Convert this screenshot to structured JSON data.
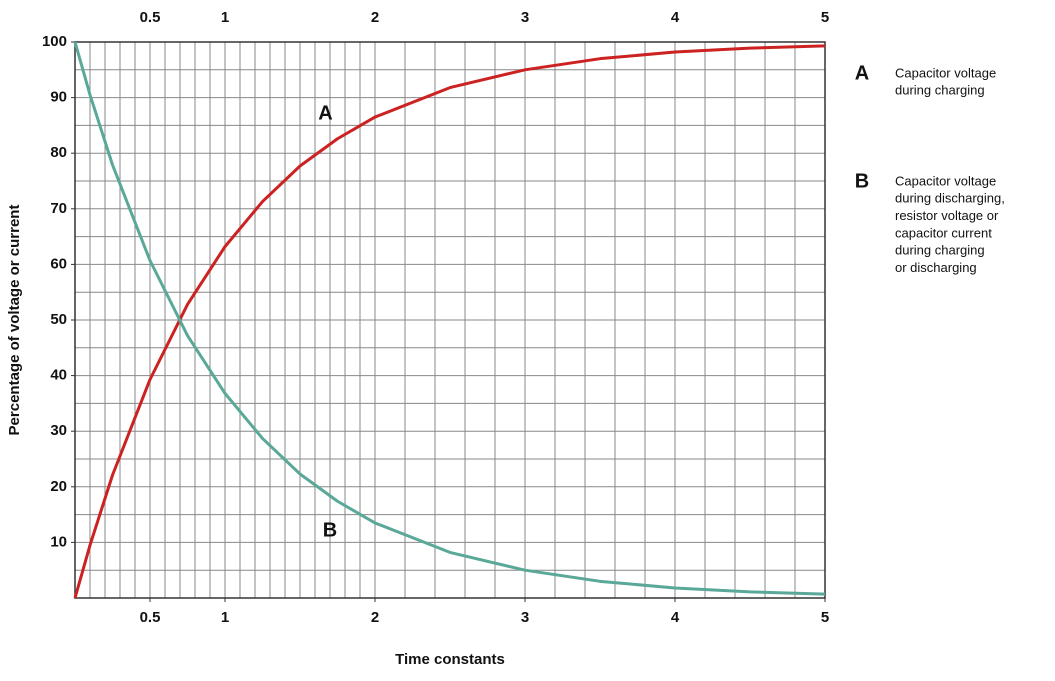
{
  "chart_data": {
    "type": "line",
    "x_label": "Time constants",
    "y_label": "Percentage of voltage or current",
    "x": [
      0,
      0.1,
      0.25,
      0.5,
      0.75,
      1,
      1.25,
      1.5,
      1.75,
      2,
      2.5,
      3,
      3.5,
      4,
      4.5,
      5
    ],
    "series": [
      {
        "name": "A",
        "color": "#cc2222",
        "label_color": "#cc2222",
        "values": [
          0,
          9.5,
          22.1,
          39.3,
          52.8,
          63.2,
          71.3,
          77.7,
          82.6,
          86.5,
          91.8,
          95.0,
          97.0,
          98.2,
          98.9,
          99.3
        ],
        "description": [
          "Capacitor voltage",
          "during charging"
        ],
        "annotation_at": [
          1.67,
          87
        ]
      },
      {
        "name": "B",
        "color": "#5aa898",
        "label_color": "#2e9a2e",
        "values": [
          100,
          90.5,
          77.9,
          60.7,
          47.2,
          36.8,
          28.7,
          22.3,
          17.4,
          13.5,
          8.2,
          5.0,
          3.0,
          1.8,
          1.1,
          0.7
        ],
        "description": [
          "Capacitor voltage",
          "during discharging,",
          "resistor voltage or",
          "capacitor current",
          "during charging",
          "or discharging"
        ],
        "annotation_at": [
          1.7,
          12
        ]
      }
    ],
    "xlim": [
      0,
      5
    ],
    "ylim": [
      0,
      100
    ],
    "xticks": [
      0.5,
      1,
      2,
      3,
      4,
      5
    ],
    "yticks": [
      10,
      20,
      30,
      40,
      50,
      60,
      70,
      80,
      90,
      100
    ],
    "xgrid": [
      0.1,
      0.2,
      0.3,
      0.4,
      0.5,
      0.6,
      0.7,
      0.8,
      0.9,
      1,
      1.1,
      1.2,
      1.3,
      1.4,
      1.5,
      1.6,
      1.7,
      1.8,
      1.9,
      2,
      2.2,
      2.4,
      2.6,
      2.8,
      3,
      3.2,
      3.4,
      3.6,
      3.8,
      4,
      4.2,
      4.4,
      4.6,
      4.8
    ],
    "ygrid": [
      5,
      10,
      15,
      20,
      25,
      30,
      35,
      40,
      45,
      50,
      55,
      60,
      65,
      70,
      75,
      80,
      85,
      90,
      95
    ],
    "grid": true
  }
}
